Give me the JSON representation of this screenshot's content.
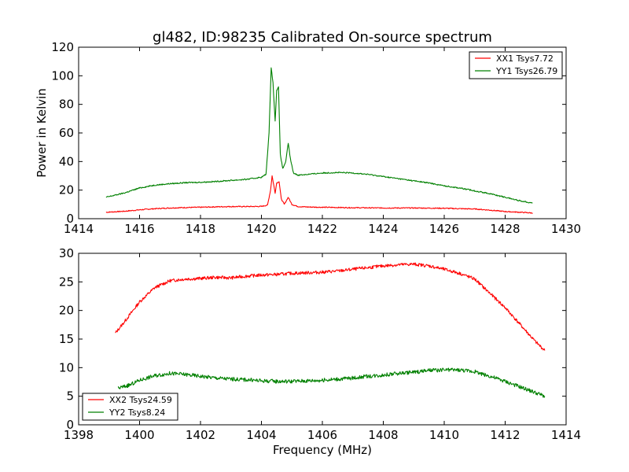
{
  "chart_data": [
    {
      "type": "line",
      "title": "gl482, ID:98235 Calibrated On-source spectrum",
      "xlabel": "",
      "ylabel": "Power in Kelvin",
      "xlim": [
        1414,
        1430
      ],
      "ylim": [
        0,
        120
      ],
      "xticks": [
        "1414",
        "1416",
        "1418",
        "1420",
        "1422",
        "1424",
        "1426",
        "1428",
        "1430"
      ],
      "yticks": [
        "0",
        "20",
        "40",
        "60",
        "80",
        "100",
        "120"
      ],
      "legend_position": "top-right",
      "series": [
        {
          "name": "XX1 Tsys7.72",
          "color": "#ff0000",
          "x": [
            1414.9,
            1415.5,
            1416.0,
            1416.5,
            1417.0,
            1417.5,
            1418.0,
            1418.5,
            1419.0,
            1419.5,
            1420.0,
            1420.2,
            1420.3,
            1420.35,
            1420.45,
            1420.5,
            1420.58,
            1420.65,
            1420.75,
            1420.88,
            1421.0,
            1421.2,
            1421.5,
            1422.0,
            1423.0,
            1424.0,
            1425.0,
            1426.0,
            1426.5,
            1427.0,
            1427.5,
            1428.0,
            1428.5,
            1428.9
          ],
          "y": [
            4.5,
            5.2,
            6.2,
            7.0,
            7.5,
            7.8,
            8.0,
            8.3,
            8.5,
            8.5,
            8.6,
            9.5,
            20,
            30,
            18,
            25,
            26,
            14,
            10,
            15,
            10,
            8.5,
            8.2,
            8.0,
            7.7,
            7.5,
            7.5,
            7.3,
            7.0,
            6.8,
            6.0,
            5.0,
            4.5,
            4.0
          ]
        },
        {
          "name": "YY1 Tsys26.79",
          "color": "#008000",
          "x": [
            1414.9,
            1415.5,
            1416.0,
            1416.5,
            1417.0,
            1417.5,
            1418.0,
            1418.5,
            1419.0,
            1419.5,
            1420.0,
            1420.15,
            1420.25,
            1420.32,
            1420.38,
            1420.45,
            1420.5,
            1420.56,
            1420.62,
            1420.7,
            1420.8,
            1420.88,
            1420.95,
            1421.05,
            1421.2,
            1421.5,
            1422.0,
            1422.5,
            1423.0,
            1423.5,
            1424.0,
            1424.5,
            1425.0,
            1425.5,
            1426.0,
            1426.5,
            1427.0,
            1427.5,
            1428.0,
            1428.5,
            1428.9
          ],
          "y": [
            15,
            18,
            21.5,
            23.5,
            24.5,
            25.2,
            25.5,
            26,
            26.8,
            27.5,
            29,
            31,
            60,
            106,
            95,
            68,
            90,
            92,
            45,
            35,
            40,
            53,
            42,
            32,
            30.5,
            31,
            32,
            32.3,
            32,
            31,
            29.5,
            28,
            26.5,
            25,
            23,
            21.5,
            19.5,
            17.5,
            15,
            12.5,
            11
          ]
        }
      ]
    },
    {
      "type": "line",
      "title": "",
      "xlabel": "Frequency (MHz)",
      "ylabel": "",
      "xlim": [
        1398,
        1414
      ],
      "ylim": [
        0,
        30
      ],
      "xticks": [
        "1398",
        "1400",
        "1402",
        "1404",
        "1406",
        "1408",
        "1410",
        "1412",
        "1414"
      ],
      "yticks": [
        "0",
        "5",
        "10",
        "15",
        "20",
        "25",
        "30"
      ],
      "legend_position": "bottom-left",
      "series": [
        {
          "name": "XX2 Tsys24.59",
          "color": "#ff0000",
          "x": [
            1399.2,
            1399.5,
            1400.0,
            1400.5,
            1401.0,
            1401.5,
            1402.0,
            1402.5,
            1403.0,
            1403.5,
            1404.0,
            1404.5,
            1405.0,
            1405.5,
            1406.0,
            1406.5,
            1407.0,
            1407.5,
            1408.0,
            1408.5,
            1409.0,
            1409.5,
            1410.0,
            1410.5,
            1411.0,
            1411.5,
            1412.0,
            1412.5,
            1413.0,
            1413.3
          ],
          "y": [
            16,
            18,
            21.5,
            24,
            25.2,
            25.5,
            25.6,
            25.8,
            25.7,
            26,
            26.2,
            26.3,
            26.5,
            26.6,
            26.7,
            26.9,
            27.2,
            27.5,
            27.8,
            28,
            28.1,
            27.8,
            27.2,
            26.5,
            25.5,
            23,
            20.5,
            17.5,
            14.5,
            13
          ]
        },
        {
          "name": "YY2 Tsys8.24",
          "color": "#008000",
          "x": [
            1399.3,
            1399.7,
            1400.0,
            1400.5,
            1401.0,
            1401.5,
            1402.0,
            1402.5,
            1403.0,
            1403.5,
            1404.0,
            1404.5,
            1405.0,
            1405.5,
            1406.0,
            1406.5,
            1407.0,
            1407.5,
            1408.0,
            1408.5,
            1409.0,
            1409.5,
            1410.0,
            1410.5,
            1411.0,
            1411.5,
            1412.0,
            1412.5,
            1413.0,
            1413.3
          ],
          "y": [
            6.4,
            7.0,
            7.8,
            8.6,
            9.0,
            8.8,
            8.5,
            8.2,
            8.0,
            7.9,
            7.7,
            7.6,
            7.6,
            7.7,
            7.8,
            8.0,
            8.2,
            8.5,
            8.7,
            9.0,
            9.2,
            9.5,
            9.6,
            9.6,
            9.3,
            8.5,
            7.6,
            6.6,
            5.6,
            5.0
          ]
        }
      ]
    }
  ]
}
